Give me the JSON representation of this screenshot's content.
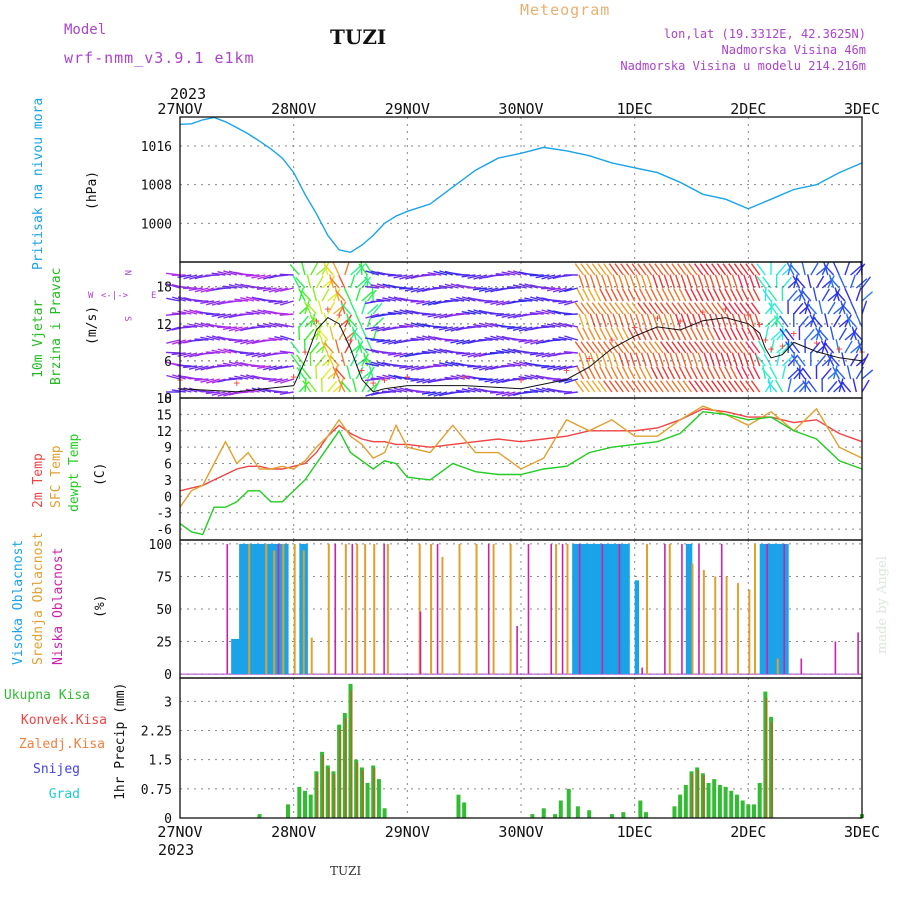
{
  "header": {
    "model_label": "Model",
    "model_name": "wrf-nmm_v3.9.1 e1km",
    "station": "TUZI",
    "title": "Meteogram",
    "lonlat": "lon,lat (19.3312E, 42.3625N)",
    "elevation": "Nadmorska Visina 46m",
    "model_elevation": "Nadmorska Visina u modelu 214.216m",
    "year_top": "2023",
    "year_bottom": "2023",
    "footer_station": "TUZI",
    "watermark": "made by Angel"
  },
  "colors": {
    "pressure": "#1aa3e8",
    "wind_label": "#22bb22",
    "temp2m": "#ee4444",
    "sfc_temp": "#e0a030",
    "dewpoint": "#22cc22",
    "cloud_high": "#1aa3e8",
    "cloud_mid": "#e0a030",
    "cloud_low": "#cc22aa",
    "precip_total": "#33bb33",
    "precip_conv": "#ee4444",
    "precip_frozen": "#f08040",
    "precip_snow": "#4444dd",
    "precip_hail": "#22cccc",
    "purple_text": "#aa44cc",
    "orange_text": "#e8b070"
  },
  "chart_data": [
    {
      "type": "line",
      "panel": "pressure",
      "ylabel_side": "Pritisak na nivou mora",
      "ylabel": "(hPa)",
      "x_ticks": [
        "27NOV",
        "28NOV",
        "29NOV",
        "30NOV",
        "1DEC",
        "2DEC",
        "3DEC"
      ],
      "ylim": [
        992,
        1022
      ],
      "yticks": [
        "1000",
        "1008",
        "1016"
      ],
      "grid": true,
      "x_days": [
        0.0,
        0.1,
        0.2,
        0.3,
        0.4,
        0.5,
        0.6,
        0.7,
        0.8,
        0.9,
        1.0,
        1.1,
        1.2,
        1.3,
        1.4,
        1.5,
        1.6,
        1.7,
        1.8,
        1.9,
        2.0,
        2.2,
        2.4,
        2.6,
        2.8,
        3.0,
        3.2,
        3.4,
        3.6,
        3.8,
        4.0,
        4.2,
        4.4,
        4.6,
        4.8,
        5.0,
        5.1,
        5.2,
        5.4,
        5.6,
        5.8,
        6.0
      ],
      "values": [
        1020.5,
        1020.6,
        1021.4,
        1021.9,
        1021.0,
        1019.8,
        1018.5,
        1017.0,
        1015.4,
        1013.5,
        1010.5,
        1006.0,
        1002.0,
        997.5,
        994.5,
        994.0,
        995.5,
        997.5,
        1000.0,
        1001.5,
        1002.5,
        1004.0,
        1007.5,
        1011.0,
        1013.5,
        1014.5,
        1015.7,
        1015.0,
        1014.0,
        1012.5,
        1011.5,
        1010.5,
        1008.5,
        1006.0,
        1005.0,
        1003.0,
        1004.0,
        1005.0,
        1007.0,
        1008.0,
        1010.5,
        1012.5
      ]
    },
    {
      "type": "scatter",
      "panel": "wind",
      "ylabel_side": [
        "10m Vjetar",
        "Brzina i Pravac"
      ],
      "ylabel": "(m/s)",
      "compass": {
        "north": "N",
        "south": "S",
        "west": "W",
        "east": "E",
        "arrow": "<-|->"
      },
      "ylim": [
        0,
        22
      ],
      "yticks": [
        "0",
        "6",
        "12",
        "18"
      ],
      "speed_x_days": [
        0.0,
        0.5,
        1.0,
        1.1,
        1.2,
        1.3,
        1.4,
        1.5,
        1.6,
        1.7,
        1.8,
        2.0,
        2.5,
        3.0,
        3.4,
        3.6,
        3.8,
        4.0,
        4.2,
        4.4,
        4.6,
        4.8,
        5.0,
        5.1,
        5.15,
        5.2,
        5.3,
        5.4,
        5.6,
        5.8,
        6.0
      ],
      "speed": [
        1.5,
        1.0,
        2.0,
        6.0,
        11.0,
        13.0,
        12.0,
        8.0,
        3.0,
        1.0,
        1.5,
        2.0,
        2.0,
        1.5,
        3.0,
        5.0,
        8.0,
        10.0,
        11.5,
        11.0,
        12.5,
        13.0,
        12.0,
        10.5,
        8.0,
        6.5,
        7.0,
        9.0,
        7.5,
        6.5,
        6.0
      ],
      "gust_markers": "+"
    },
    {
      "type": "line",
      "panel": "temperature",
      "ylabel_side": [
        "2m Temp",
        "SFC Temp",
        "dewpt Temp"
      ],
      "ylabel": "(C)",
      "ylim": [
        -8,
        18
      ],
      "yticks": [
        "-6",
        "-3",
        "0",
        "3",
        "6",
        "9",
        "12",
        "15",
        "18"
      ],
      "x_days": [
        0.0,
        0.1,
        0.2,
        0.3,
        0.4,
        0.5,
        0.6,
        0.7,
        0.8,
        0.9,
        1.0,
        1.1,
        1.2,
        1.3,
        1.4,
        1.5,
        1.6,
        1.7,
        1.8,
        1.9,
        2.0,
        2.2,
        2.4,
        2.6,
        2.8,
        3.0,
        3.2,
        3.4,
        3.6,
        3.8,
        4.0,
        4.2,
        4.4,
        4.6,
        4.8,
        5.0,
        5.2,
        5.4,
        5.6,
        5.8,
        6.0
      ],
      "series": [
        {
          "name": "2m Temp",
          "color": "#ee4444",
          "values": [
            1.0,
            1.5,
            2.0,
            3.0,
            4.0,
            5.0,
            5.5,
            5.5,
            5.0,
            5.0,
            5.5,
            6.0,
            8.0,
            11.0,
            13.0,
            11.5,
            10.5,
            10.0,
            10.0,
            9.5,
            9.5,
            9.0,
            9.5,
            10.0,
            10.5,
            10.0,
            10.5,
            11.0,
            12.0,
            12.0,
            12.0,
            12.5,
            14.0,
            16.0,
            15.5,
            14.5,
            14.5,
            13.5,
            14.0,
            11.5,
            10.0
          ]
        },
        {
          "name": "SFC Temp",
          "color": "#e0a030",
          "values": [
            -2.0,
            1.0,
            2.0,
            6.0,
            10.0,
            6.0,
            8.0,
            5.0,
            5.0,
            5.5,
            5.0,
            6.5,
            9.0,
            11.0,
            14.0,
            11.0,
            9.5,
            7.0,
            8.0,
            13.0,
            9.0,
            8.0,
            13.0,
            8.0,
            8.0,
            5.0,
            7.0,
            14.0,
            12.0,
            14.0,
            11.0,
            11.0,
            14.0,
            16.5,
            15.0,
            13.0,
            15.5,
            12.0,
            16.0,
            9.0,
            7.0
          ]
        },
        {
          "name": "dewpt Temp",
          "color": "#22cc22",
          "values": [
            -5.0,
            -6.5,
            -7.0,
            -2.0,
            -2.0,
            -1.0,
            1.0,
            1.0,
            -1.0,
            -1.0,
            1.0,
            3.0,
            6.0,
            9.0,
            12.0,
            8.0,
            6.5,
            5.0,
            6.5,
            6.0,
            3.5,
            3.0,
            6.0,
            4.5,
            4.0,
            4.0,
            5.0,
            5.5,
            8.0,
            9.0,
            9.5,
            10.0,
            11.5,
            15.5,
            15.0,
            14.0,
            14.5,
            12.0,
            10.5,
            6.5,
            5.0
          ]
        }
      ]
    },
    {
      "type": "bar",
      "panel": "clouds",
      "ylabel_side": [
        "Visoka Oblacnost",
        "Srednja Oblacnost",
        "Niska Oblacnost"
      ],
      "ylabel": "(%)",
      "ylim": [
        0,
        100
      ],
      "yticks": [
        "0",
        "25",
        "50",
        "75",
        "100"
      ],
      "series": [
        {
          "name": "Visoka Oblacnost",
          "color": "#1aa3e8",
          "segments": [
            [
              0.45,
              0.52,
              27
            ],
            [
              0.52,
              0.95,
              100
            ],
            [
              1.05,
              1.12,
              100
            ],
            [
              3.45,
              3.95,
              100
            ],
            [
              4.0,
              4.03,
              72
            ],
            [
              4.45,
              4.5,
              100
            ],
            [
              5.1,
              5.35,
              100
            ]
          ]
        },
        {
          "name": "Srednja Oblacnost",
          "color": "#e0a030",
          "values_note": "intermittent",
          "bars_x_days": [
            0.6,
            0.75,
            0.82,
            0.9,
            1.0,
            1.08,
            1.15,
            1.3,
            1.45,
            1.55,
            1.62,
            1.7,
            1.82,
            2.1,
            2.2,
            2.3,
            2.45,
            2.6,
            2.75,
            2.9,
            3.3,
            3.4,
            4.1,
            4.3,
            4.5,
            4.6,
            4.7,
            4.8,
            4.9,
            5.0,
            5.05,
            5.25
          ],
          "bars_values": [
            100,
            100,
            95,
            100,
            100,
            95,
            28,
            100,
            100,
            100,
            100,
            100,
            100,
            100,
            100,
            90,
            100,
            100,
            100,
            100,
            100,
            100,
            100,
            100,
            85,
            80,
            75,
            75,
            70,
            65,
            100,
            12
          ]
        },
        {
          "name": "Niska Oblacnost",
          "color": "#cc22aa",
          "bars_x_days": [
            0.4,
            0.85,
            1.35,
            1.5,
            1.78,
            2.1,
            2.25,
            2.7,
            2.95,
            3.05,
            3.25,
            3.35,
            3.5,
            3.7,
            3.85,
            4.05,
            4.25,
            4.4,
            4.55,
            4.75,
            5.15,
            5.3,
            5.45,
            5.75,
            5.95
          ],
          "bars_values": [
            100,
            100,
            100,
            100,
            100,
            48,
            100,
            100,
            37,
            100,
            100,
            100,
            100,
            100,
            100,
            5,
            100,
            100,
            100,
            100,
            100,
            100,
            12,
            25,
            32
          ]
        }
      ]
    },
    {
      "type": "bar",
      "panel": "precipitation",
      "legend": [
        "Ukupna Kisa",
        "Konvek.Kisa",
        "Zaledj.Kisa",
        "Snijeg",
        "Grad"
      ],
      "ylabel": "1hr Precip (mm)",
      "ylim": [
        0,
        3.6
      ],
      "yticks": [
        "0",
        "0.75",
        "1.5",
        "2.25",
        "3"
      ],
      "x_ticks_bottom": [
        "27NOV",
        "28NOV",
        "29NOV",
        "30NOV",
        "1DEC",
        "2DEC",
        "3DEC"
      ],
      "bars_x_days": [
        0.7,
        0.95,
        1.05,
        1.1,
        1.15,
        1.2,
        1.25,
        1.3,
        1.35,
        1.4,
        1.45,
        1.5,
        1.55,
        1.6,
        1.65,
        1.7,
        1.75,
        1.8,
        2.45,
        2.5,
        3.1,
        3.2,
        3.3,
        3.35,
        3.42,
        3.5,
        3.6,
        3.8,
        3.9,
        4.05,
        4.1,
        4.35,
        4.4,
        4.45,
        4.5,
        4.55,
        4.6,
        4.65,
        4.7,
        4.75,
        4.8,
        4.85,
        4.9,
        4.95,
        5.0,
        5.05,
        5.1,
        5.15,
        5.2,
        6.0
      ],
      "values": [
        0.1,
        0.35,
        0.8,
        0.7,
        0.6,
        1.2,
        1.7,
        1.35,
        1.2,
        2.4,
        2.7,
        3.45,
        1.5,
        1.3,
        0.9,
        1.35,
        1.0,
        0.25,
        0.6,
        0.4,
        0.1,
        0.25,
        0.1,
        0.45,
        0.75,
        0.3,
        0.2,
        0.1,
        0.15,
        0.45,
        0.15,
        0.3,
        0.6,
        0.85,
        1.2,
        1.3,
        1.15,
        0.9,
        1.0,
        0.85,
        0.8,
        0.7,
        0.6,
        0.45,
        0.35,
        0.35,
        0.9,
        3.25,
        2.6,
        0.1
      ]
    }
  ]
}
